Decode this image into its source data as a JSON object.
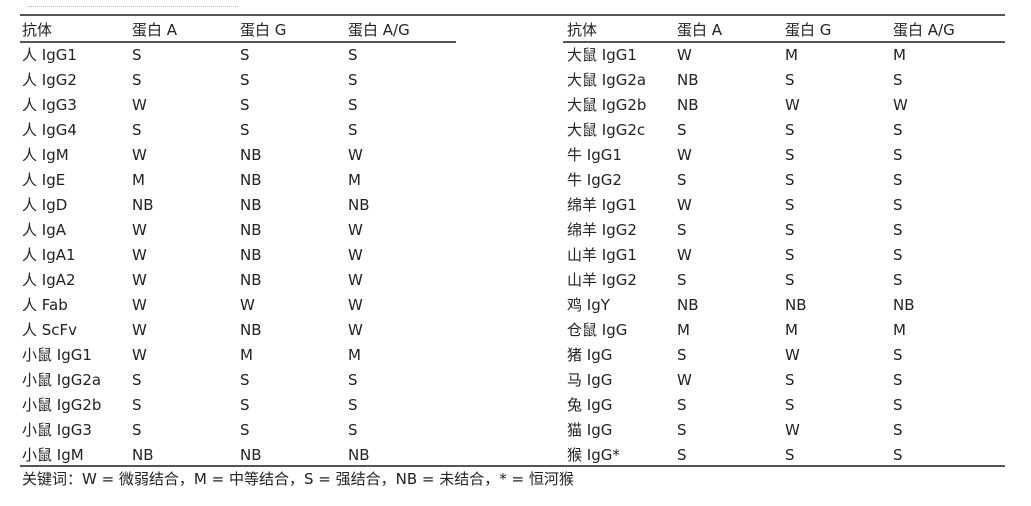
{
  "headers": [
    "抗体",
    "蛋白 A",
    "蛋白 G",
    "蛋白 A/G"
  ],
  "left_rows": [
    [
      "人 IgG1",
      "S",
      "S",
      "S"
    ],
    [
      "人 IgG2",
      "S",
      "S",
      "S"
    ],
    [
      "人 IgG3",
      "W",
      "S",
      "S"
    ],
    [
      "人 IgG4",
      "S",
      "S",
      "S"
    ],
    [
      "人 IgM",
      "W",
      "NB",
      "W"
    ],
    [
      "人 IgE",
      "M",
      "NB",
      "M"
    ],
    [
      "人 IgD",
      "NB",
      "NB",
      "NB"
    ],
    [
      "人 IgA",
      "W",
      "NB",
      "W"
    ],
    [
      "人 IgA1",
      "W",
      "NB",
      "W"
    ],
    [
      "人 IgA2",
      "W",
      "NB",
      "W"
    ],
    [
      "人 Fab",
      "W",
      "W",
      "W"
    ],
    [
      "人 ScFv",
      "W",
      "NB",
      "W"
    ],
    [
      "小鼠 IgG1",
      "W",
      "M",
      "M"
    ],
    [
      "小鼠 IgG2a",
      "S",
      "S",
      "S"
    ],
    [
      "小鼠 IgG2b",
      "S",
      "S",
      "S"
    ],
    [
      "小鼠 IgG3",
      "S",
      "S",
      "S"
    ],
    [
      "小鼠 IgM",
      "NB",
      "NB",
      "NB"
    ]
  ],
  "right_rows": [
    [
      "大鼠 IgG1",
      "W",
      "M",
      "M"
    ],
    [
      "大鼠 IgG2a",
      "NB",
      "S",
      "S"
    ],
    [
      "大鼠 IgG2b",
      "NB",
      "W",
      "W"
    ],
    [
      "大鼠 IgG2c",
      "S",
      "S",
      "S"
    ],
    [
      "牛 IgG1",
      "W",
      "S",
      "S"
    ],
    [
      "牛 IgG2",
      "S",
      "S",
      "S"
    ],
    [
      "绵羊 IgG1",
      "W",
      "S",
      "S"
    ],
    [
      "绵羊 IgG2",
      "S",
      "S",
      "S"
    ],
    [
      "山羊 IgG1",
      "W",
      "S",
      "S"
    ],
    [
      "山羊 IgG2",
      "S",
      "S",
      "S"
    ],
    [
      "鸡 IgY",
      "NB",
      "NB",
      "NB"
    ],
    [
      "仓鼠 IgG",
      "M",
      "M",
      "M"
    ],
    [
      "猪 IgG",
      "S",
      "W",
      "S"
    ],
    [
      "马 IgG",
      "W",
      "S",
      "S"
    ],
    [
      "兔 IgG",
      "S",
      "S",
      "S"
    ],
    [
      "猫 IgG",
      "S",
      "W",
      "S"
    ],
    [
      "猴 IgG*",
      "S",
      "S",
      "S"
    ]
  ],
  "legend": "关键词：W = 微弱结合，M = 中等结合，S = 强结合，NB = 未结合，* = 恒河猴"
}
